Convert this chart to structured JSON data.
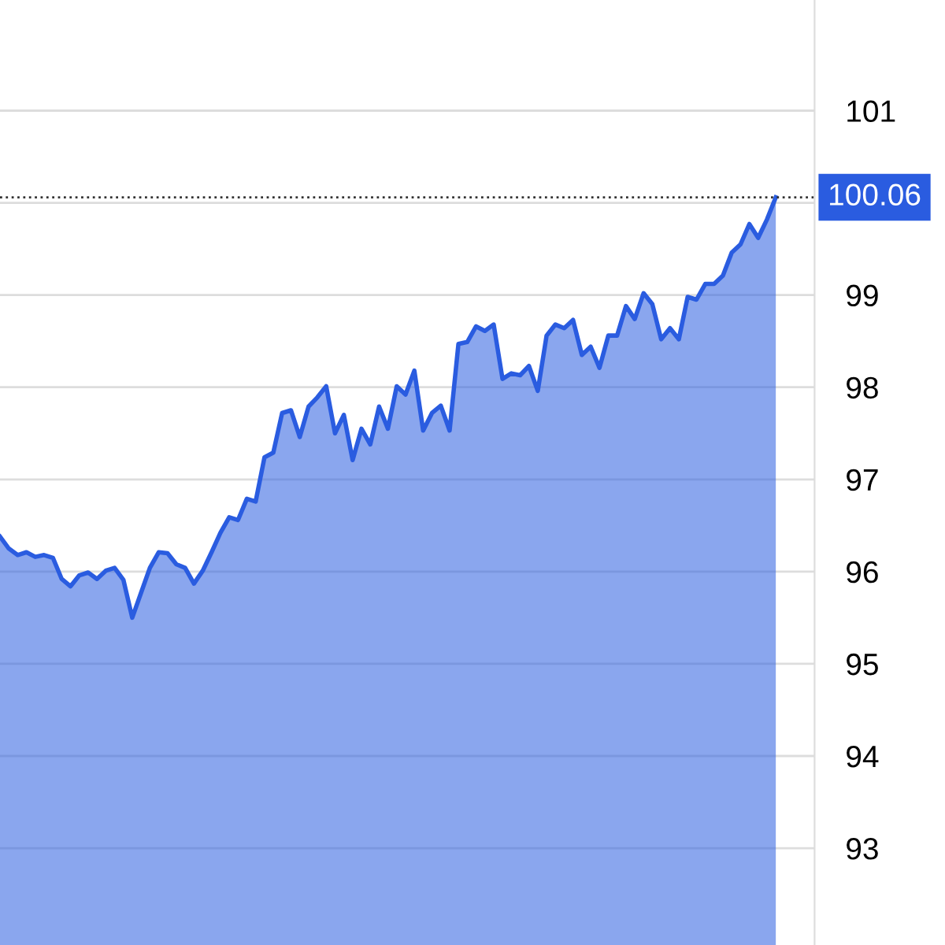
{
  "chart_data": {
    "type": "area",
    "categories": [
      null,
      null,
      null,
      null,
      null,
      null,
      null,
      null,
      null,
      null,
      null,
      null,
      null,
      null,
      null,
      null,
      null,
      null,
      null,
      null,
      null,
      null,
      null,
      null,
      null,
      null,
      null,
      null,
      null,
      null,
      null,
      null,
      null,
      null,
      null,
      null,
      null,
      null,
      null,
      null,
      null,
      null,
      null,
      null,
      null,
      null,
      null,
      null,
      null,
      null,
      null,
      null,
      null,
      null,
      null,
      null,
      null,
      null,
      null,
      null,
      null,
      null,
      null,
      null,
      null,
      null,
      null,
      null,
      null,
      null,
      null,
      null,
      null,
      null,
      null,
      null,
      null,
      null,
      null,
      null,
      null,
      null,
      null,
      null,
      null,
      null,
      null,
      null,
      null
    ],
    "series": [
      {
        "color": "#2a5ce0",
        "values": [
          96.38,
          96.25,
          96.18,
          96.21,
          96.16,
          96.18,
          96.15,
          95.92,
          95.84,
          95.96,
          95.99,
          95.92,
          96.01,
          96.04,
          95.91,
          95.5,
          95.77,
          96.04,
          96.21,
          96.2,
          96.08,
          96.04,
          95.87,
          96.01,
          96.21,
          96.42,
          96.59,
          96.56,
          96.79,
          96.76,
          97.24,
          97.29,
          97.72,
          97.75,
          97.46,
          97.79,
          97.89,
          98.01,
          97.5,
          97.7,
          97.21,
          97.55,
          97.38,
          97.79,
          97.55,
          98.01,
          97.92,
          98.18,
          97.53,
          97.72,
          97.8,
          97.53,
          98.47,
          98.49,
          98.66,
          98.61,
          98.68,
          98.09,
          98.15,
          98.13,
          98.23,
          97.96,
          98.56,
          98.68,
          98.64,
          98.73,
          98.35,
          98.44,
          98.21,
          98.56,
          98.56,
          98.88,
          98.74,
          99.02,
          98.9,
          98.52,
          98.64,
          98.52,
          98.98,
          98.95,
          99.12,
          99.12,
          99.21,
          99.46,
          99.55,
          99.77,
          99.62,
          99.82,
          100.06
        ]
      }
    ],
    "ylim": [
      91.95,
      102.2
    ],
    "yticks": [
      93,
      94,
      95,
      96,
      97,
      98,
      99,
      {
        "value": 100,
        "label": null
      },
      101
    ],
    "ref_lines": [
      {
        "axis": "y",
        "value": 100.06,
        "label": "100.06",
        "color": "#333333",
        "line_style": "dotted"
      }
    ],
    "grid": "y",
    "tick_labels": "y"
  }
}
